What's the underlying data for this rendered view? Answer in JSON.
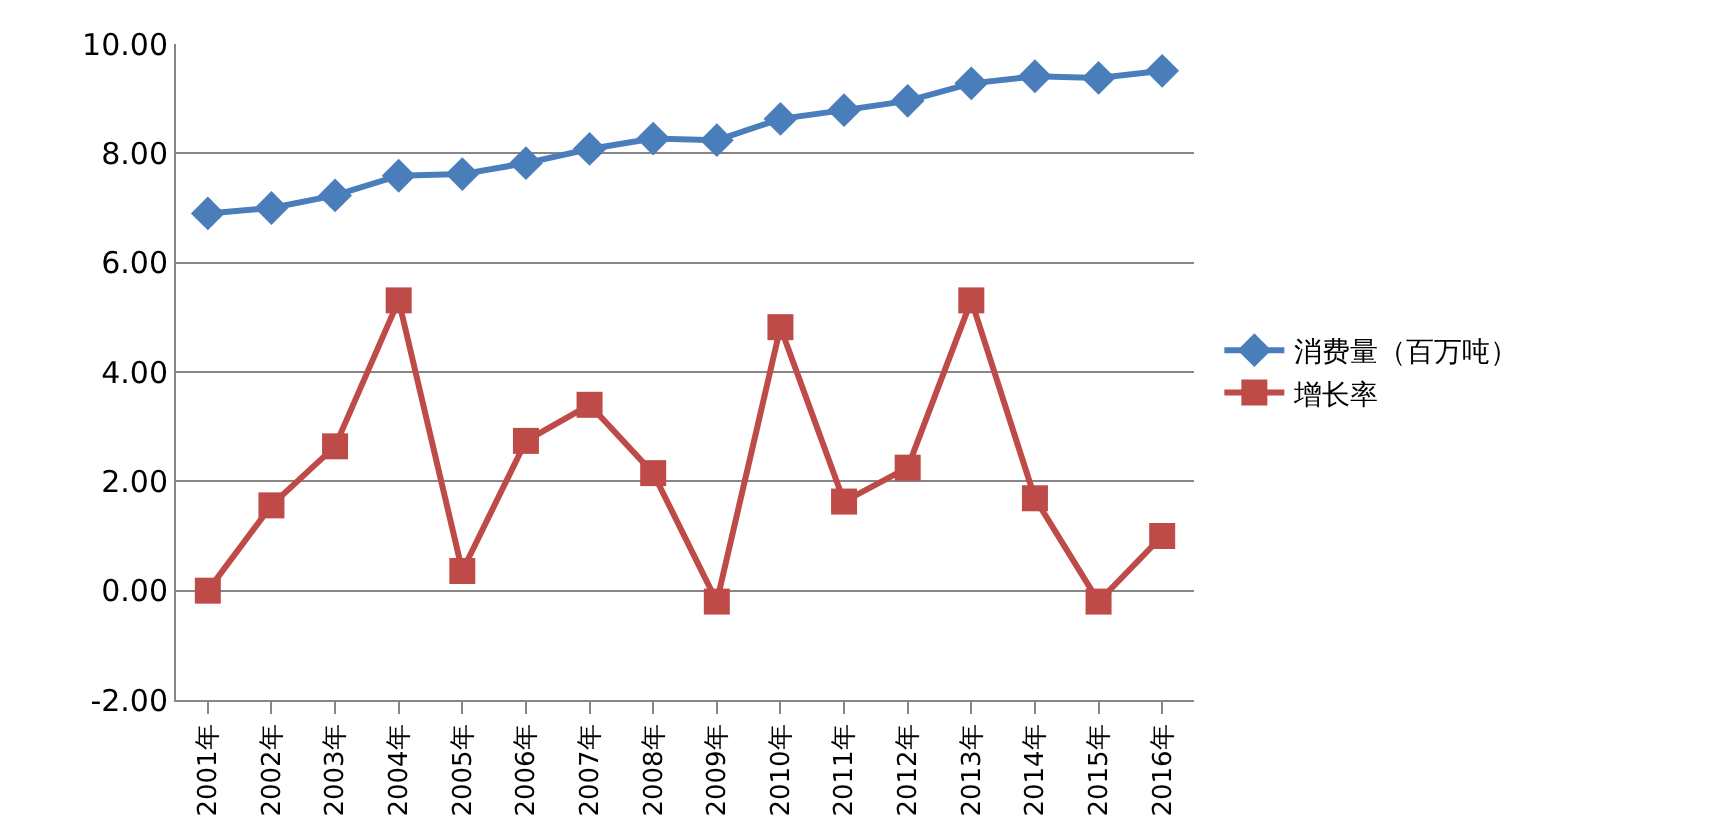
{
  "chart_data": {
    "type": "line",
    "categories": [
      "2001年",
      "2002年",
      "2003年",
      "2004年",
      "2005年",
      "2006年",
      "2007年",
      "2008年",
      "2009年",
      "2010年",
      "2011年",
      "2012年",
      "2013年",
      "2014年",
      "2015年",
      "2016年"
    ],
    "series": [
      {
        "name": "消费量（百万吨）",
        "color": "#4a7ebb",
        "marker": "diamond",
        "values": [
          6.9,
          7.0,
          7.23,
          7.59,
          7.62,
          7.82,
          8.08,
          8.27,
          8.24,
          8.63,
          8.79,
          8.96,
          9.28,
          9.41,
          9.38,
          9.51
        ]
      },
      {
        "name": "增长率",
        "color": "#be4b48",
        "marker": "square",
        "values": [
          0,
          1.56,
          2.64,
          5.31,
          0.36,
          2.74,
          3.4,
          2.15,
          -0.2,
          4.82,
          1.63,
          2.25,
          5.31,
          1.69,
          -0.2,
          1.0
        ]
      }
    ],
    "ylim": [
      -2,
      10
    ],
    "yticks": [
      {
        "value": -2,
        "label": "-2.00"
      },
      {
        "value": 0,
        "label": "0.00"
      },
      {
        "value": 2,
        "label": "2.00"
      },
      {
        "value": 4,
        "label": "4.00"
      },
      {
        "value": 6,
        "label": "6.00"
      },
      {
        "value": 8,
        "label": "8.00"
      },
      {
        "value": 10,
        "label": "10.00"
      }
    ],
    "grid": "y",
    "legend": "right",
    "line_style": "solid"
  }
}
